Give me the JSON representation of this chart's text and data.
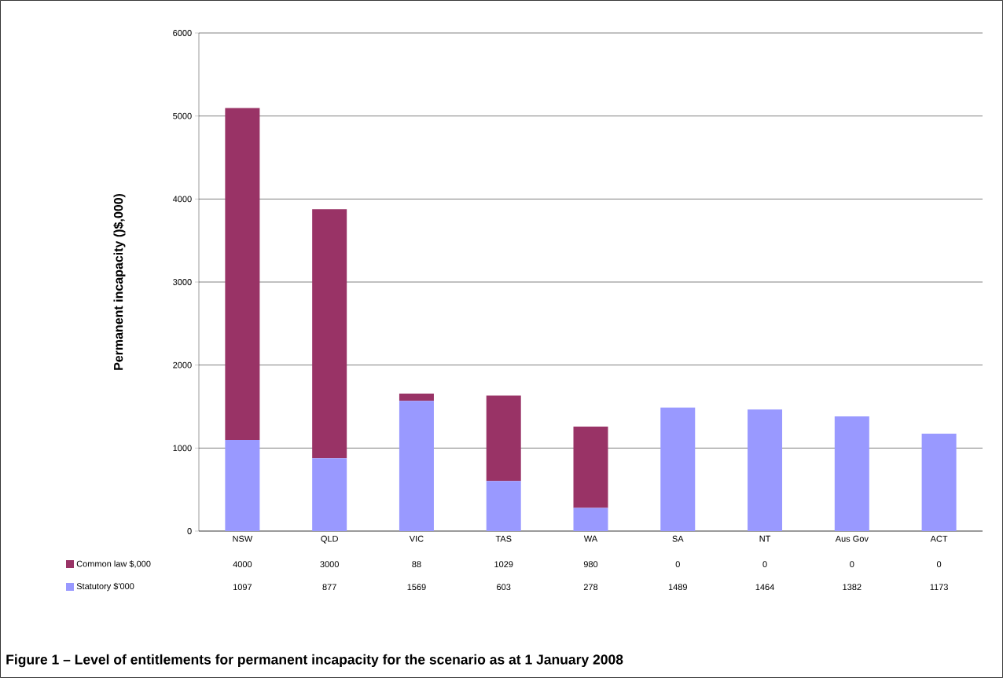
{
  "chart_data": {
    "type": "bar",
    "stacked": true,
    "title": "Figure 1 – Level of entitlements for permanent incapacity for the scenario as at 1 January 2008",
    "ylabel": "Permanent incapacity ()$,000)",
    "categories": [
      "NSW",
      "QLD",
      "VIC",
      "TAS",
      "WA",
      "SA",
      "NT",
      "Aus Gov",
      "ACT"
    ],
    "series": [
      {
        "name": "Statutory $'000",
        "color": "#9999ff",
        "values": [
          1097,
          877,
          1569,
          603,
          278,
          1489,
          1464,
          1382,
          1173
        ]
      },
      {
        "name": "Common law $,000",
        "color": "#993366",
        "values": [
          4000,
          3000,
          88,
          1029,
          980,
          0,
          0,
          0,
          0
        ]
      }
    ],
    "ylim": [
      0,
      6000
    ],
    "yticks": [
      0,
      1000,
      2000,
      3000,
      4000,
      5000,
      6000
    ],
    "grid": "y",
    "legend": "bottom left",
    "data_labels": true
  }
}
